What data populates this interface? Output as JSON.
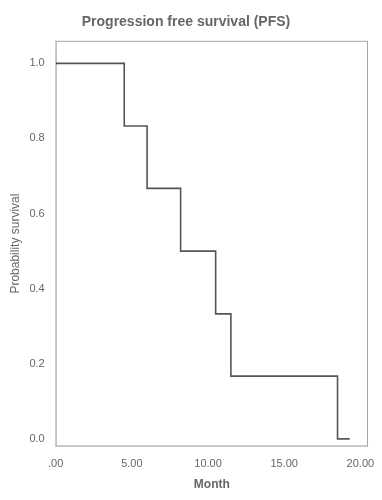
{
  "chart_data": {
    "type": "line",
    "title": "Progression free survival (PFS)",
    "x_label": "Month",
    "y_label": "Probability survival",
    "x": [
      0,
      4.5,
      4.5,
      6.0,
      6.0,
      8.2,
      8.2,
      10.5,
      10.5,
      11.5,
      11.5,
      13.0,
      13.0,
      18.5,
      18.5,
      19.3
    ],
    "values": [
      1.0,
      1.0,
      0.833,
      0.833,
      0.667,
      0.667,
      0.5,
      0.5,
      0.333,
      0.333,
      0.167,
      0.167,
      0.167,
      0.167,
      0.0,
      0.0
    ],
    "color": "#555555",
    "xlim": [
      0,
      20.5
    ],
    "ylim": [
      -0.02,
      1.06
    ],
    "xticks": [
      {
        "value": 0,
        "label": ".00"
      },
      {
        "value": 5,
        "label": "5.00"
      },
      {
        "value": 10,
        "label": "10.00"
      },
      {
        "value": 15,
        "label": "15.00"
      },
      {
        "value": 20,
        "label": "20.00"
      }
    ],
    "yticks": [
      {
        "value": 0.0,
        "label": "0.0"
      },
      0.2,
      0.4,
      0.6,
      0.8,
      {
        "value": 1.0,
        "label": "1.0"
      }
    ],
    "grid": false
  }
}
